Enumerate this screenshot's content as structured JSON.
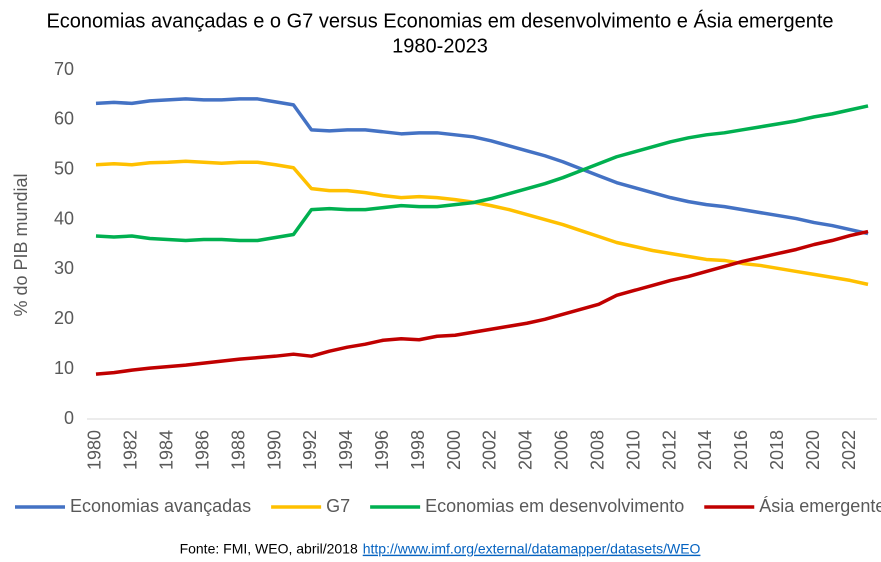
{
  "chart_data": {
    "type": "line",
    "title": "Economias avançadas e o G7 versus Economias em desenvolvimento e Ásia emergente",
    "subtitle": "1980-2023",
    "y_label": "% do PIB mundial",
    "x": [
      1980,
      1981,
      1982,
      1983,
      1984,
      1985,
      1986,
      1987,
      1988,
      1989,
      1990,
      1991,
      1992,
      1993,
      1994,
      1995,
      1996,
      1997,
      1998,
      1999,
      2000,
      2001,
      2002,
      2003,
      2004,
      2005,
      2006,
      2007,
      2008,
      2009,
      2010,
      2011,
      2012,
      2013,
      2014,
      2015,
      2016,
      2017,
      2018,
      2019,
      2020,
      2021,
      2022,
      2023
    ],
    "xlim": [
      1979.5,
      2023.5
    ],
    "xticks": [
      1980,
      1982,
      1984,
      1986,
      1988,
      1990,
      1992,
      1994,
      1996,
      1998,
      2000,
      2002,
      2004,
      2006,
      2008,
      2010,
      2012,
      2014,
      2016,
      2018,
      2020,
      2022
    ],
    "ylim": [
      0,
      70
    ],
    "yticks": [
      0,
      10,
      20,
      30,
      40,
      50,
      60,
      70
    ],
    "grid": false,
    "legend": "bottom",
    "series": [
      {
        "name": "Economias avançadas",
        "color": "#4472c4",
        "values": [
          63.3,
          63.5,
          63.3,
          63.8,
          64.0,
          64.2,
          64.0,
          64.0,
          64.2,
          64.2,
          63.6,
          63.0,
          58.0,
          57.8,
          58.0,
          58.0,
          57.6,
          57.2,
          57.4,
          57.4,
          57.0,
          56.6,
          55.8,
          54.8,
          53.8,
          52.8,
          51.6,
          50.2,
          48.8,
          47.4,
          46.4,
          45.4,
          44.4,
          43.6,
          43.0,
          42.6,
          42.0,
          41.4,
          40.8,
          40.2,
          39.4,
          38.8,
          38.0,
          37.2
        ]
      },
      {
        "name": "G7",
        "color": "#ffc000",
        "values": [
          51.0,
          51.2,
          51.0,
          51.4,
          51.5,
          51.7,
          51.5,
          51.3,
          51.5,
          51.5,
          51.0,
          50.4,
          46.2,
          45.8,
          45.8,
          45.4,
          44.8,
          44.4,
          44.6,
          44.4,
          44.0,
          43.5,
          42.8,
          42.0,
          41.0,
          40.0,
          39.0,
          37.8,
          36.6,
          35.4,
          34.6,
          33.8,
          33.2,
          32.6,
          32.0,
          31.8,
          31.2,
          30.8,
          30.2,
          29.6,
          29.0,
          28.4,
          27.8,
          27.0
        ]
      },
      {
        "name": "Economias em desenvolvimento",
        "color": "#00b050",
        "values": [
          36.7,
          36.5,
          36.7,
          36.2,
          36.0,
          35.8,
          36.0,
          36.0,
          35.8,
          35.8,
          36.4,
          37.0,
          42.0,
          42.2,
          42.0,
          42.0,
          42.4,
          42.8,
          42.6,
          42.6,
          43.0,
          43.4,
          44.2,
          45.2,
          46.2,
          47.2,
          48.4,
          49.8,
          51.2,
          52.6,
          53.6,
          54.6,
          55.6,
          56.4,
          57.0,
          57.4,
          58.0,
          58.6,
          59.2,
          59.8,
          60.6,
          61.2,
          62.0,
          62.8
        ]
      },
      {
        "name": "Ásia emergente",
        "color": "#c00000",
        "values": [
          9.0,
          9.3,
          9.8,
          10.2,
          10.5,
          10.8,
          11.2,
          11.6,
          12.0,
          12.3,
          12.6,
          13.0,
          12.6,
          13.6,
          14.4,
          15.0,
          15.8,
          16.1,
          15.9,
          16.6,
          16.8,
          17.4,
          18.0,
          18.6,
          19.2,
          20.0,
          21.0,
          22.0,
          23.0,
          24.8,
          25.8,
          26.8,
          27.8,
          28.6,
          29.6,
          30.6,
          31.6,
          32.4,
          33.2,
          34.0,
          35.0,
          35.8,
          36.8,
          37.6
        ]
      }
    ],
    "source": {
      "text": "Fonte: FMI, WEO, abril/2018",
      "link": "http://www.imf.org/external/datamapper/datasets/WEO"
    }
  }
}
